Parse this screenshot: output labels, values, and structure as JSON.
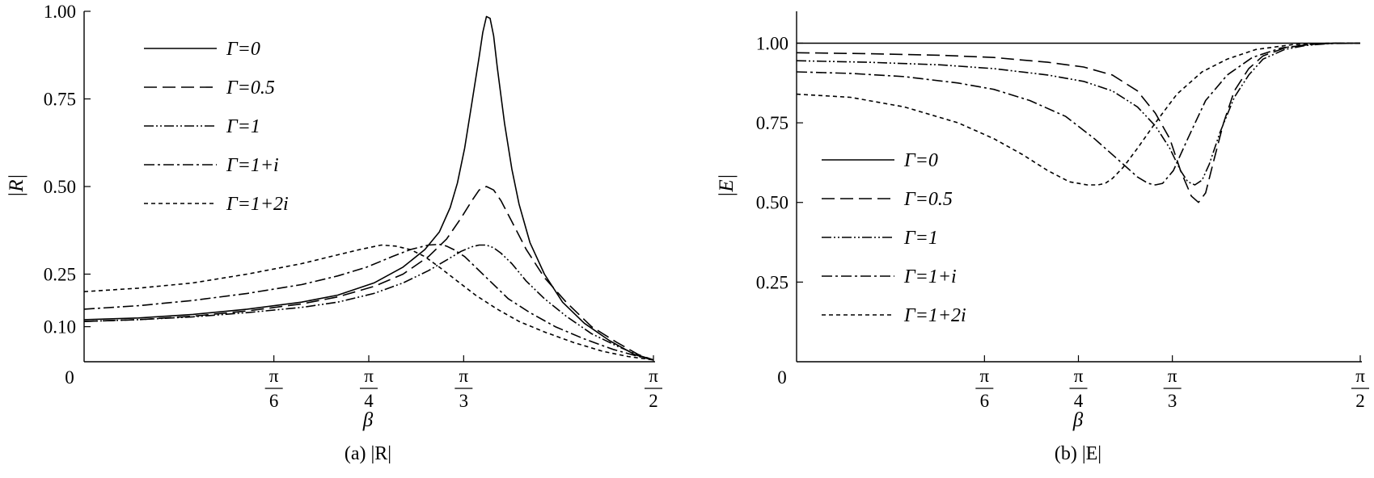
{
  "chart_data": [
    {
      "type": "line",
      "panel": "a",
      "caption": "(a) |R|",
      "xlabel": "β",
      "ylabel": "|R|",
      "xlim": [
        0,
        1.5708
      ],
      "ylim": [
        0,
        1.0
      ],
      "x_ticks": [
        {
          "value": 0,
          "label": "0"
        },
        {
          "value": 0.5236,
          "num": "π",
          "den": "6"
        },
        {
          "value": 0.7854,
          "num": "π",
          "den": "4"
        },
        {
          "value": 1.0472,
          "num": "π",
          "den": "3"
        },
        {
          "value": 1.5708,
          "num": "π",
          "den": "2"
        }
      ],
      "y_ticks": [
        {
          "value": 0.1,
          "label": "0.10"
        },
        {
          "value": 0.25,
          "label": "0.25"
        },
        {
          "value": 0.5,
          "label": "0.50"
        },
        {
          "value": 0.75,
          "label": "0.75"
        },
        {
          "value": 1.0,
          "label": "1.00"
        }
      ],
      "legend_position": "top-left",
      "series": [
        {
          "name": "Γ=0",
          "dash": "solid",
          "color": "#000000",
          "x": [
            0,
            0.15,
            0.3,
            0.45,
            0.6,
            0.7,
            0.8,
            0.88,
            0.94,
            0.98,
            1.01,
            1.03,
            1.05,
            1.07,
            1.09,
            1.1,
            1.11,
            1.12,
            1.13,
            1.14,
            1.16,
            1.18,
            1.2,
            1.23,
            1.27,
            1.32,
            1.38,
            1.45,
            1.52,
            1.5708
          ],
          "y": [
            0.12,
            0.125,
            0.135,
            0.15,
            0.17,
            0.19,
            0.225,
            0.27,
            0.32,
            0.37,
            0.44,
            0.51,
            0.61,
            0.74,
            0.87,
            0.94,
            0.985,
            0.98,
            0.93,
            0.84,
            0.68,
            0.55,
            0.45,
            0.34,
            0.25,
            0.17,
            0.11,
            0.06,
            0.02,
            0.005
          ]
        },
        {
          "name": "Γ=0.5",
          "dash": "long-dash",
          "color": "#000000",
          "x": [
            0,
            0.15,
            0.3,
            0.45,
            0.6,
            0.7,
            0.8,
            0.88,
            0.95,
            1.0,
            1.04,
            1.07,
            1.09,
            1.11,
            1.13,
            1.15,
            1.18,
            1.22,
            1.27,
            1.33,
            1.4,
            1.47,
            1.53,
            1.5708
          ],
          "y": [
            0.115,
            0.12,
            0.13,
            0.145,
            0.165,
            0.185,
            0.215,
            0.25,
            0.3,
            0.35,
            0.41,
            0.46,
            0.49,
            0.5,
            0.49,
            0.46,
            0.4,
            0.32,
            0.24,
            0.17,
            0.1,
            0.055,
            0.02,
            0.005
          ]
        },
        {
          "name": "Γ=1",
          "dash": "dash-dot-dot",
          "color": "#000000",
          "x": [
            0,
            0.15,
            0.3,
            0.45,
            0.6,
            0.7,
            0.8,
            0.88,
            0.95,
            1.0,
            1.04,
            1.07,
            1.09,
            1.11,
            1.13,
            1.15,
            1.18,
            1.22,
            1.27,
            1.33,
            1.4,
            1.47,
            1.53,
            1.5708
          ],
          "y": [
            0.115,
            0.12,
            0.128,
            0.14,
            0.155,
            0.17,
            0.195,
            0.225,
            0.26,
            0.29,
            0.315,
            0.328,
            0.333,
            0.333,
            0.325,
            0.31,
            0.28,
            0.23,
            0.18,
            0.13,
            0.08,
            0.045,
            0.018,
            0.005
          ]
        },
        {
          "name": "Γ=1+i",
          "dash": "dash-dot",
          "color": "#000000",
          "x": [
            0,
            0.15,
            0.3,
            0.45,
            0.6,
            0.7,
            0.78,
            0.85,
            0.9,
            0.95,
            0.98,
            1.0,
            1.02,
            1.05,
            1.08,
            1.12,
            1.17,
            1.23,
            1.3,
            1.38,
            1.46,
            1.53,
            1.5708
          ],
          "y": [
            0.15,
            0.16,
            0.175,
            0.195,
            0.22,
            0.245,
            0.27,
            0.3,
            0.32,
            0.333,
            0.335,
            0.33,
            0.32,
            0.3,
            0.27,
            0.23,
            0.18,
            0.14,
            0.1,
            0.065,
            0.035,
            0.015,
            0.005
          ]
        },
        {
          "name": "Γ=1+2i",
          "dash": "short-dash",
          "color": "#000000",
          "x": [
            0,
            0.15,
            0.3,
            0.45,
            0.6,
            0.7,
            0.76,
            0.82,
            0.86,
            0.9,
            0.94,
            0.98,
            1.03,
            1.08,
            1.14,
            1.2,
            1.27,
            1.35,
            1.43,
            1.5,
            1.5708
          ],
          "y": [
            0.2,
            0.21,
            0.225,
            0.25,
            0.28,
            0.305,
            0.32,
            0.333,
            0.33,
            0.32,
            0.3,
            0.27,
            0.23,
            0.19,
            0.15,
            0.115,
            0.085,
            0.055,
            0.03,
            0.015,
            0.005
          ]
        }
      ]
    },
    {
      "type": "line",
      "panel": "b",
      "caption": "(b) |E|",
      "xlabel": "β",
      "ylabel": "|E|",
      "xlim": [
        0,
        1.5708
      ],
      "ylim": [
        0,
        1.1
      ],
      "x_ticks": [
        {
          "value": 0,
          "label": "0"
        },
        {
          "value": 0.5236,
          "num": "π",
          "den": "6"
        },
        {
          "value": 0.7854,
          "num": "π",
          "den": "4"
        },
        {
          "value": 1.0472,
          "num": "π",
          "den": "3"
        },
        {
          "value": 1.5708,
          "num": "π",
          "den": "2"
        }
      ],
      "y_ticks": [
        {
          "value": 0.25,
          "label": "0.25"
        },
        {
          "value": 0.5,
          "label": "0.50"
        },
        {
          "value": 0.75,
          "label": "0.75"
        },
        {
          "value": 1.0,
          "label": "1.00"
        }
      ],
      "legend_position": "middle-left",
      "series": [
        {
          "name": "Γ=0",
          "dash": "solid",
          "color": "#000000",
          "x": [
            0,
            0.5,
            1.0,
            1.5708
          ],
          "y": [
            1.0,
            1.0,
            1.0,
            1.0
          ]
        },
        {
          "name": "Γ=0.5",
          "dash": "long-dash",
          "color": "#000000",
          "x": [
            0,
            0.2,
            0.4,
            0.55,
            0.7,
            0.8,
            0.88,
            0.95,
            1.0,
            1.04,
            1.07,
            1.1,
            1.12,
            1.14,
            1.16,
            1.19,
            1.22,
            1.26,
            1.3,
            1.36,
            1.42,
            1.5,
            1.5708
          ],
          "y": [
            0.97,
            0.967,
            0.962,
            0.955,
            0.94,
            0.925,
            0.9,
            0.85,
            0.78,
            0.7,
            0.6,
            0.52,
            0.5,
            0.53,
            0.62,
            0.75,
            0.85,
            0.92,
            0.96,
            0.985,
            0.995,
            1.0,
            1.0
          ]
        },
        {
          "name": "Γ=1",
          "dash": "dash-dot-dot",
          "color": "#000000",
          "x": [
            0,
            0.2,
            0.4,
            0.55,
            0.7,
            0.8,
            0.88,
            0.95,
            1.0,
            1.04,
            1.07,
            1.09,
            1.11,
            1.13,
            1.15,
            1.18,
            1.22,
            1.26,
            1.3,
            1.36,
            1.42,
            1.5,
            1.5708
          ],
          "y": [
            0.945,
            0.94,
            0.932,
            0.92,
            0.9,
            0.88,
            0.85,
            0.8,
            0.74,
            0.67,
            0.6,
            0.565,
            0.555,
            0.57,
            0.62,
            0.72,
            0.83,
            0.9,
            0.95,
            0.98,
            0.993,
            1.0,
            1.0
          ]
        },
        {
          "name": "Γ=1+i",
          "dash": "dash-dot",
          "color": "#000000",
          "x": [
            0,
            0.15,
            0.3,
            0.45,
            0.55,
            0.65,
            0.75,
            0.83,
            0.9,
            0.95,
            0.98,
            1.0,
            1.02,
            1.05,
            1.09,
            1.14,
            1.2,
            1.27,
            1.35,
            1.45,
            1.5708
          ],
          "y": [
            0.91,
            0.905,
            0.895,
            0.875,
            0.855,
            0.82,
            0.77,
            0.7,
            0.63,
            0.58,
            0.56,
            0.555,
            0.56,
            0.6,
            0.7,
            0.82,
            0.9,
            0.955,
            0.985,
            0.998,
            1.0
          ]
        },
        {
          "name": "Γ=1+2i",
          "dash": "short-dash",
          "color": "#000000",
          "x": [
            0,
            0.15,
            0.3,
            0.45,
            0.55,
            0.63,
            0.7,
            0.76,
            0.81,
            0.84,
            0.86,
            0.88,
            0.91,
            0.95,
            1.0,
            1.06,
            1.13,
            1.2,
            1.28,
            1.38,
            1.48,
            1.5708
          ],
          "y": [
            0.84,
            0.83,
            0.8,
            0.75,
            0.7,
            0.65,
            0.6,
            0.565,
            0.555,
            0.555,
            0.56,
            0.575,
            0.61,
            0.67,
            0.75,
            0.84,
            0.91,
            0.95,
            0.98,
            0.995,
            1.0,
            1.0
          ]
        }
      ]
    }
  ]
}
